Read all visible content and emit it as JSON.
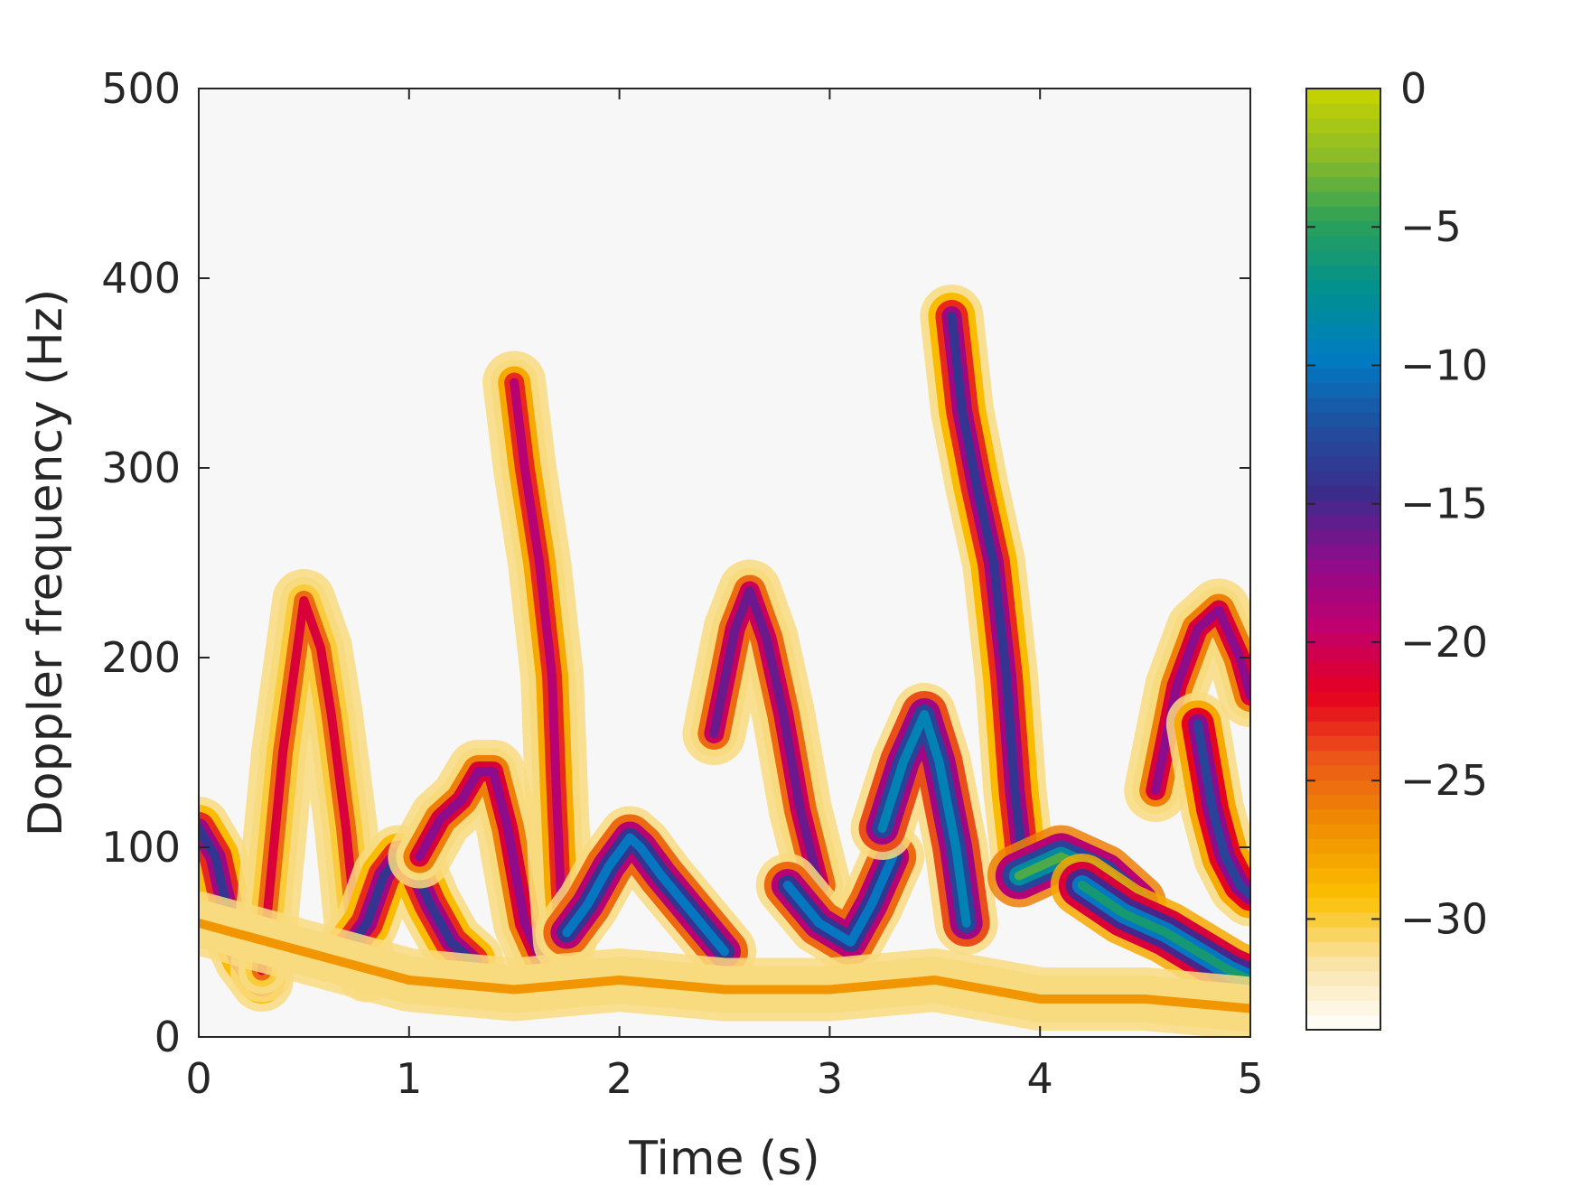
{
  "chart_data": {
    "type": "heatmap",
    "title": "",
    "xlabel": "Time (s)",
    "ylabel": "Doppler frequency (Hz)",
    "xlim": [
      0,
      5
    ],
    "ylim": [
      0,
      500
    ],
    "x_ticks": [
      "0",
      "1",
      "2",
      "3",
      "4",
      "5"
    ],
    "y_ticks": [
      "0",
      "100",
      "200",
      "300",
      "400",
      "500"
    ],
    "colorbar": {
      "range": [
        -34,
        0
      ],
      "ticks": [
        "0",
        "−5",
        "−10",
        "−15",
        "−20",
        "−25",
        "−30"
      ],
      "tick_values": [
        0,
        -5,
        -10,
        -15,
        -20,
        -25,
        -30
      ],
      "colors": [
        "#ffffff",
        "#f9e3a6",
        "#fbbf00",
        "#f09000",
        "#ec5a18",
        "#e6001e",
        "#c0006e",
        "#8c0c8c",
        "#3a2d8c",
        "#1f4fa0",
        "#007cc4",
        "#009090",
        "#2aa05a",
        "#8cbc28",
        "#c8d400"
      ]
    },
    "background_color": "#f7f7f7",
    "ridges": [
      {
        "points": [
          [
            0.0,
            110
          ],
          [
            0.08,
            95
          ],
          [
            0.15,
            60
          ],
          [
            0.22,
            42
          ],
          [
            0.3,
            30
          ]
        ],
        "peak_db": -14
      },
      {
        "points": [
          [
            0.3,
            35
          ],
          [
            0.4,
            150
          ],
          [
            0.5,
            230
          ],
          [
            0.58,
            205
          ],
          [
            0.63,
            170
          ],
          [
            0.7,
            110
          ],
          [
            0.75,
            55
          ],
          [
            0.8,
            35
          ]
        ],
        "peak_db": -21
      },
      {
        "points": [
          [
            0.7,
            45
          ],
          [
            0.8,
            60
          ],
          [
            0.88,
            85
          ],
          [
            0.95,
            95
          ],
          [
            1.02,
            90
          ],
          [
            1.1,
            70
          ],
          [
            1.2,
            50
          ],
          [
            1.3,
            40
          ]
        ],
        "peak_db": -14
      },
      {
        "points": [
          [
            1.05,
            95
          ],
          [
            1.15,
            115
          ],
          [
            1.25,
            125
          ],
          [
            1.33,
            140
          ],
          [
            1.4,
            140
          ],
          [
            1.47,
            110
          ],
          [
            1.55,
            60
          ],
          [
            1.63,
            40
          ]
        ],
        "peak_db": -17
      },
      {
        "points": [
          [
            1.5,
            345
          ],
          [
            1.55,
            300
          ],
          [
            1.62,
            250
          ],
          [
            1.68,
            190
          ],
          [
            1.7,
            130
          ],
          [
            1.72,
            80
          ],
          [
            1.74,
            50
          ]
        ],
        "peak_db": -19
      },
      {
        "points": [
          [
            1.75,
            55
          ],
          [
            1.85,
            70
          ],
          [
            1.95,
            90
          ],
          [
            2.05,
            105
          ],
          [
            2.1,
            100
          ],
          [
            2.2,
            85
          ],
          [
            2.35,
            65
          ],
          [
            2.5,
            45
          ]
        ],
        "peak_db": -10
      },
      {
        "points": [
          [
            2.45,
            160
          ],
          [
            2.55,
            215
          ],
          [
            2.62,
            235
          ],
          [
            2.7,
            210
          ],
          [
            2.78,
            170
          ],
          [
            2.86,
            120
          ],
          [
            2.95,
            80
          ]
        ],
        "peak_db": -16
      },
      {
        "points": [
          [
            2.8,
            80
          ],
          [
            2.95,
            60
          ],
          [
            3.1,
            50
          ],
          [
            3.2,
            70
          ],
          [
            3.3,
            95
          ]
        ],
        "peak_db": -10
      },
      {
        "points": [
          [
            3.25,
            110
          ],
          [
            3.35,
            145
          ],
          [
            3.45,
            170
          ],
          [
            3.52,
            145
          ],
          [
            3.6,
            100
          ],
          [
            3.65,
            60
          ]
        ],
        "peak_db": -9
      },
      {
        "points": [
          [
            3.58,
            380
          ],
          [
            3.63,
            330
          ],
          [
            3.7,
            290
          ],
          [
            3.78,
            250
          ],
          [
            3.84,
            190
          ],
          [
            3.88,
            130
          ],
          [
            3.92,
            90
          ]
        ],
        "peak_db": -14
      },
      {
        "points": [
          [
            3.9,
            85
          ],
          [
            4.0,
            90
          ],
          [
            4.1,
            95
          ],
          [
            4.2,
            90
          ],
          [
            4.3,
            85
          ],
          [
            4.45,
            70
          ]
        ],
        "peak_db": -4
      },
      {
        "points": [
          [
            4.2,
            80
          ],
          [
            4.4,
            65
          ],
          [
            4.6,
            55
          ],
          [
            4.75,
            45
          ],
          [
            4.9,
            35
          ],
          [
            5.0,
            30
          ]
        ],
        "peak_db": -6
      },
      {
        "points": [
          [
            4.55,
            130
          ],
          [
            4.65,
            185
          ],
          [
            4.75,
            215
          ],
          [
            4.85,
            225
          ],
          [
            4.95,
            200
          ],
          [
            5.0,
            180
          ]
        ],
        "peak_db": -17
      },
      {
        "points": [
          [
            4.75,
            165
          ],
          [
            4.82,
            120
          ],
          [
            4.88,
            95
          ],
          [
            4.95,
            80
          ],
          [
            5.0,
            75
          ]
        ],
        "peak_db": -13
      },
      {
        "points": [
          [
            0.0,
            60
          ],
          [
            0.5,
            45
          ],
          [
            1.0,
            30
          ],
          [
            1.5,
            25
          ],
          [
            2.0,
            30
          ],
          [
            2.5,
            25
          ],
          [
            3.0,
            25
          ],
          [
            3.5,
            30
          ],
          [
            4.0,
            20
          ],
          [
            4.5,
            20
          ],
          [
            5.0,
            15
          ]
        ],
        "peak_db": -27
      }
    ]
  }
}
